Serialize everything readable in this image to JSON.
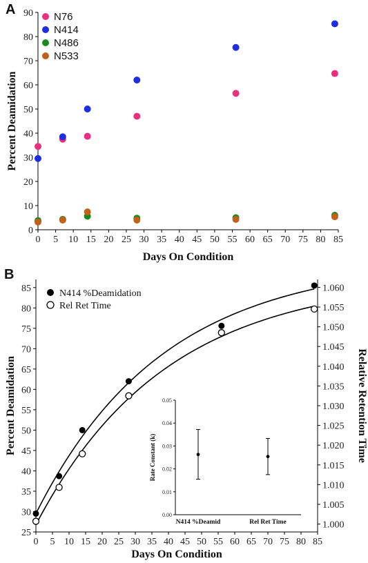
{
  "panels": {
    "a_label": "A",
    "b_label": "B"
  },
  "chart_data": [
    {
      "type": "scatter",
      "title": "",
      "xlabel": "Days On Condition",
      "ylabel": "Percent Deamidation",
      "xlim": [
        0,
        85
      ],
      "ylim": [
        0,
        90
      ],
      "xticks": [
        "0",
        "5",
        "10",
        "15",
        "20",
        "25",
        "30",
        "35",
        "40",
        "45",
        "50",
        "55",
        "60",
        "65",
        "70",
        "75",
        "80",
        "85"
      ],
      "yticks": [
        "0",
        "10",
        "20",
        "30",
        "40",
        "50",
        "60",
        "70",
        "80",
        "90"
      ],
      "legend_position": "top-left",
      "series": [
        {
          "name": "N76",
          "color": "#e8307f",
          "x": [
            0,
            7,
            14,
            28,
            56,
            84
          ],
          "y": [
            34.5,
            37.5,
            38.7,
            47.0,
            56.5,
            64.7
          ]
        },
        {
          "name": "N414",
          "color": "#1f2fe0",
          "x": [
            0,
            7,
            14,
            28,
            56,
            84
          ],
          "y": [
            29.5,
            38.5,
            50.0,
            62.0,
            75.5,
            85.3
          ]
        },
        {
          "name": "N486",
          "color": "#1a8a1a",
          "x": [
            0,
            7,
            14,
            28,
            56,
            84
          ],
          "y": [
            3.8,
            4.3,
            5.6,
            4.8,
            5.0,
            6.0
          ]
        },
        {
          "name": "N533",
          "color": "#c0621b",
          "x": [
            0,
            7,
            14,
            28,
            56,
            84
          ],
          "y": [
            3.2,
            4.0,
            7.4,
            4.0,
            4.3,
            5.4
          ]
        }
      ]
    },
    {
      "type": "scatter",
      "title": "",
      "xlabel": "Days On Condition",
      "ylabel": "Percent Deamidation",
      "y2label": "Relative Retention Time",
      "xlim": [
        0,
        85
      ],
      "ylim": [
        25,
        87
      ],
      "y2lim": [
        0.998,
        1.062
      ],
      "xticks": [
        "0",
        "5",
        "10",
        "15",
        "20",
        "25",
        "30",
        "35",
        "40",
        "45",
        "50",
        "55",
        "60",
        "65",
        "70",
        "75",
        "80",
        "85"
      ],
      "yticks": [
        "25",
        "30",
        "35",
        "40",
        "45",
        "50",
        "55",
        "60",
        "65",
        "70",
        "75",
        "80",
        "85"
      ],
      "y2ticks": [
        "1.000",
        "1.005",
        "1.010",
        "1.015",
        "1.020",
        "1.025",
        "1.030",
        "1.035",
        "1.040",
        "1.045",
        "1.050",
        "1.055",
        "1.060"
      ],
      "legend_position": "top-left",
      "series": [
        {
          "name": "N414 %Deamidation",
          "marker": "filled",
          "x": [
            0,
            7,
            14,
            28,
            56,
            84
          ],
          "y": [
            29.5,
            38.7,
            50.0,
            62.0,
            75.6,
            85.5
          ]
        },
        {
          "name": "Rel Ret Time",
          "marker": "open",
          "axis": "y2",
          "x": [
            0,
            7,
            14,
            28,
            56,
            84
          ],
          "y": [
            1.0007,
            1.0093,
            1.0178,
            1.0325,
            1.0485,
            1.0545
          ]
        }
      ],
      "inset": {
        "type": "errorbar",
        "ylabel": "Rate Constant (k)",
        "ylim": [
          0,
          0.05
        ],
        "yticks": [
          "0.00",
          "0.01",
          "0.02",
          "0.03",
          "0.04",
          "0.05"
        ],
        "categories": [
          "N414 %Deamid",
          "Rel Ret Time"
        ],
        "values": [
          0.0263,
          0.0254
        ],
        "lower": [
          0.0155,
          0.0175
        ],
        "upper": [
          0.0372,
          0.0333
        ]
      }
    }
  ]
}
